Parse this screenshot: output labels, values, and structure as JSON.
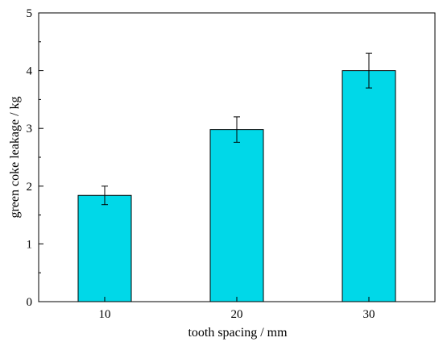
{
  "chart_data": {
    "type": "bar",
    "title": "",
    "xlabel": "tooth spacing / mm",
    "ylabel": "green coke leakage / kg",
    "categories": [
      "10",
      "20",
      "30"
    ],
    "values": [
      1.84,
      2.98,
      4.0
    ],
    "errors": [
      0.16,
      0.22,
      0.3
    ],
    "ylim": [
      0,
      5
    ],
    "yticks": [
      "0",
      "1",
      "2",
      "3",
      "4",
      "5"
    ],
    "bar_color": "#00d8e8",
    "grid": false,
    "legend": "none"
  }
}
